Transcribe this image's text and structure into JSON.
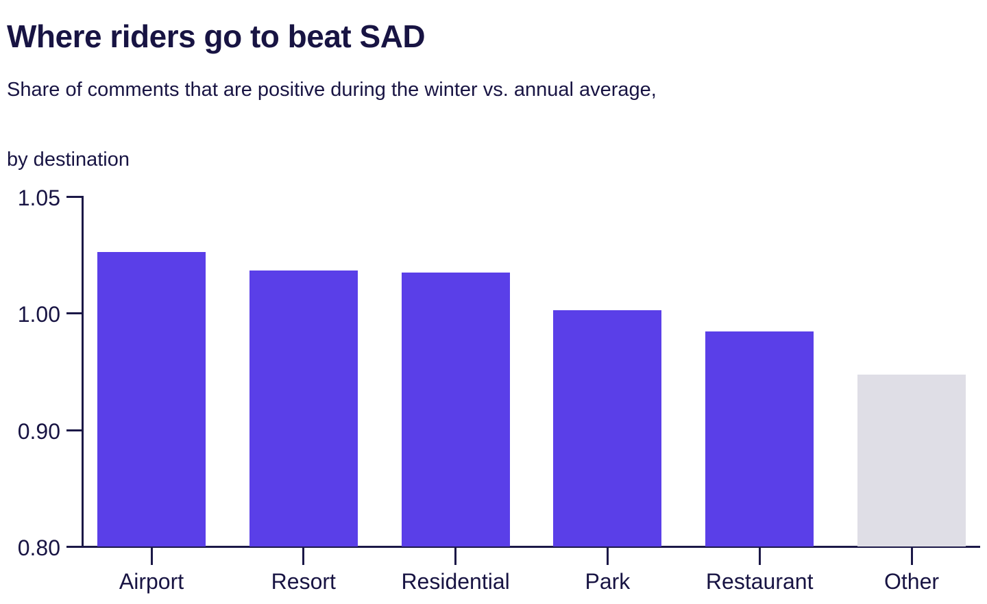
{
  "header": {
    "title": "Where riders go to beat SAD",
    "subtitle_line1": "Share of comments that are positive during the winter vs. annual average,",
    "subtitle_line2": "by destination"
  },
  "chart_data": {
    "type": "bar",
    "title": "Where riders go to beat SAD",
    "subtitle": "Share of comments that are positive during the winter vs. annual average, by destination",
    "categories": [
      "Airport",
      "Resort",
      "Residential",
      "Park",
      "Restaurant",
      "Other"
    ],
    "values": [
      1.026,
      1.018,
      1.017,
      1.001,
      0.984,
      0.947
    ],
    "xlabel": "",
    "ylabel": "",
    "ylim": [
      0.8,
      1.05
    ],
    "yticks": [
      0.8,
      0.9,
      1.0,
      1.05
    ],
    "ytick_labels": [
      "0.80",
      "0.90",
      "1.00",
      "1.05"
    ],
    "axis_note": "y-axis ticks are evenly spaced on screen despite unequal value intervals (non-linear scale)",
    "grid": false,
    "legend": null,
    "bar_colors": [
      "#5a3fe8",
      "#5a3fe8",
      "#5a3fe8",
      "#5a3fe8",
      "#5a3fe8",
      "#dfdee6"
    ],
    "highlight_color": "#5a3fe8",
    "muted_color": "#dfdee6",
    "axis_color": "#1b1847",
    "text_color": "#181443",
    "background_color": "#ffffff"
  }
}
